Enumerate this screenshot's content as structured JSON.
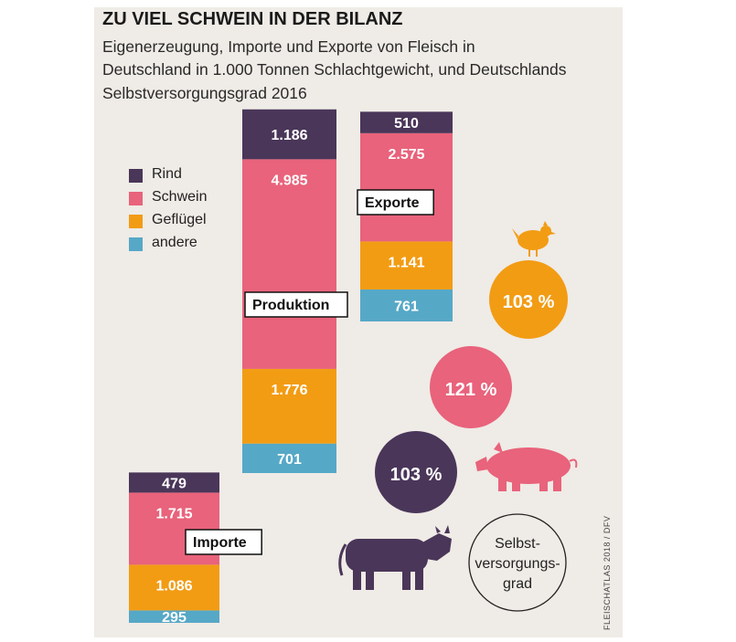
{
  "title": "ZU VIEL SCHWEIN IN DER BILANZ",
  "subtitle_lines": [
    "Eigenerzeugung, Importe und Exporte von Fleisch in",
    "Deutschland in 1.000 Tonnen Schlachtgewicht, und Deutschlands",
    "Selbstversorgungsgrad 2016"
  ],
  "colors": {
    "Rind": "#4a3659",
    "Schwein": "#e8637b",
    "Geflügel": "#f29c14",
    "andere": "#56a8c7",
    "panel": "#efebe6"
  },
  "legend": [
    {
      "label": "Rind",
      "color": "#4a3659"
    },
    {
      "label": "Schwein",
      "color": "#e8637b"
    },
    {
      "label": "Geflügel",
      "color": "#f29c14"
    },
    {
      "label": "andere",
      "color": "#56a8c7"
    }
  ],
  "chart_data": {
    "type": "bar",
    "stacked": true,
    "categories": [
      "Produktion",
      "Exporte",
      "Importe"
    ],
    "series": [
      {
        "name": "Rind",
        "values": [
          1186,
          510,
          479
        ],
        "labels": [
          "1.186",
          "510",
          "479"
        ]
      },
      {
        "name": "Schwein",
        "values": [
          4985,
          2575,
          1715
        ],
        "labels": [
          "4.985",
          "2.575",
          "1.715"
        ]
      },
      {
        "name": "Geflügel",
        "values": [
          1776,
          1141,
          1086
        ],
        "labels": [
          "1.776",
          "1.141",
          "1.086"
        ]
      },
      {
        "name": "andere",
        "values": [
          701,
          761,
          295
        ],
        "labels": [
          "701",
          "761",
          "295"
        ]
      }
    ],
    "unit": "1.000 Tonnen Schlachtgewicht",
    "self_sufficiency": [
      {
        "animal": "Geflügel",
        "icon": "chicken-icon",
        "value": 103,
        "label": "103 %",
        "color": "#f29c14"
      },
      {
        "animal": "Schwein",
        "icon": "pig-icon",
        "value": 121,
        "label": "121 %",
        "color": "#e8637b"
      },
      {
        "animal": "Rind",
        "icon": "cow-icon",
        "value": 103,
        "label": "103 %",
        "color": "#4a3659"
      }
    ],
    "self_sufficiency_label_lines": [
      "Selbst-",
      "versorgungs-",
      "grad"
    ]
  },
  "credit": "FLEISCHATLAS 2018 / DFV"
}
